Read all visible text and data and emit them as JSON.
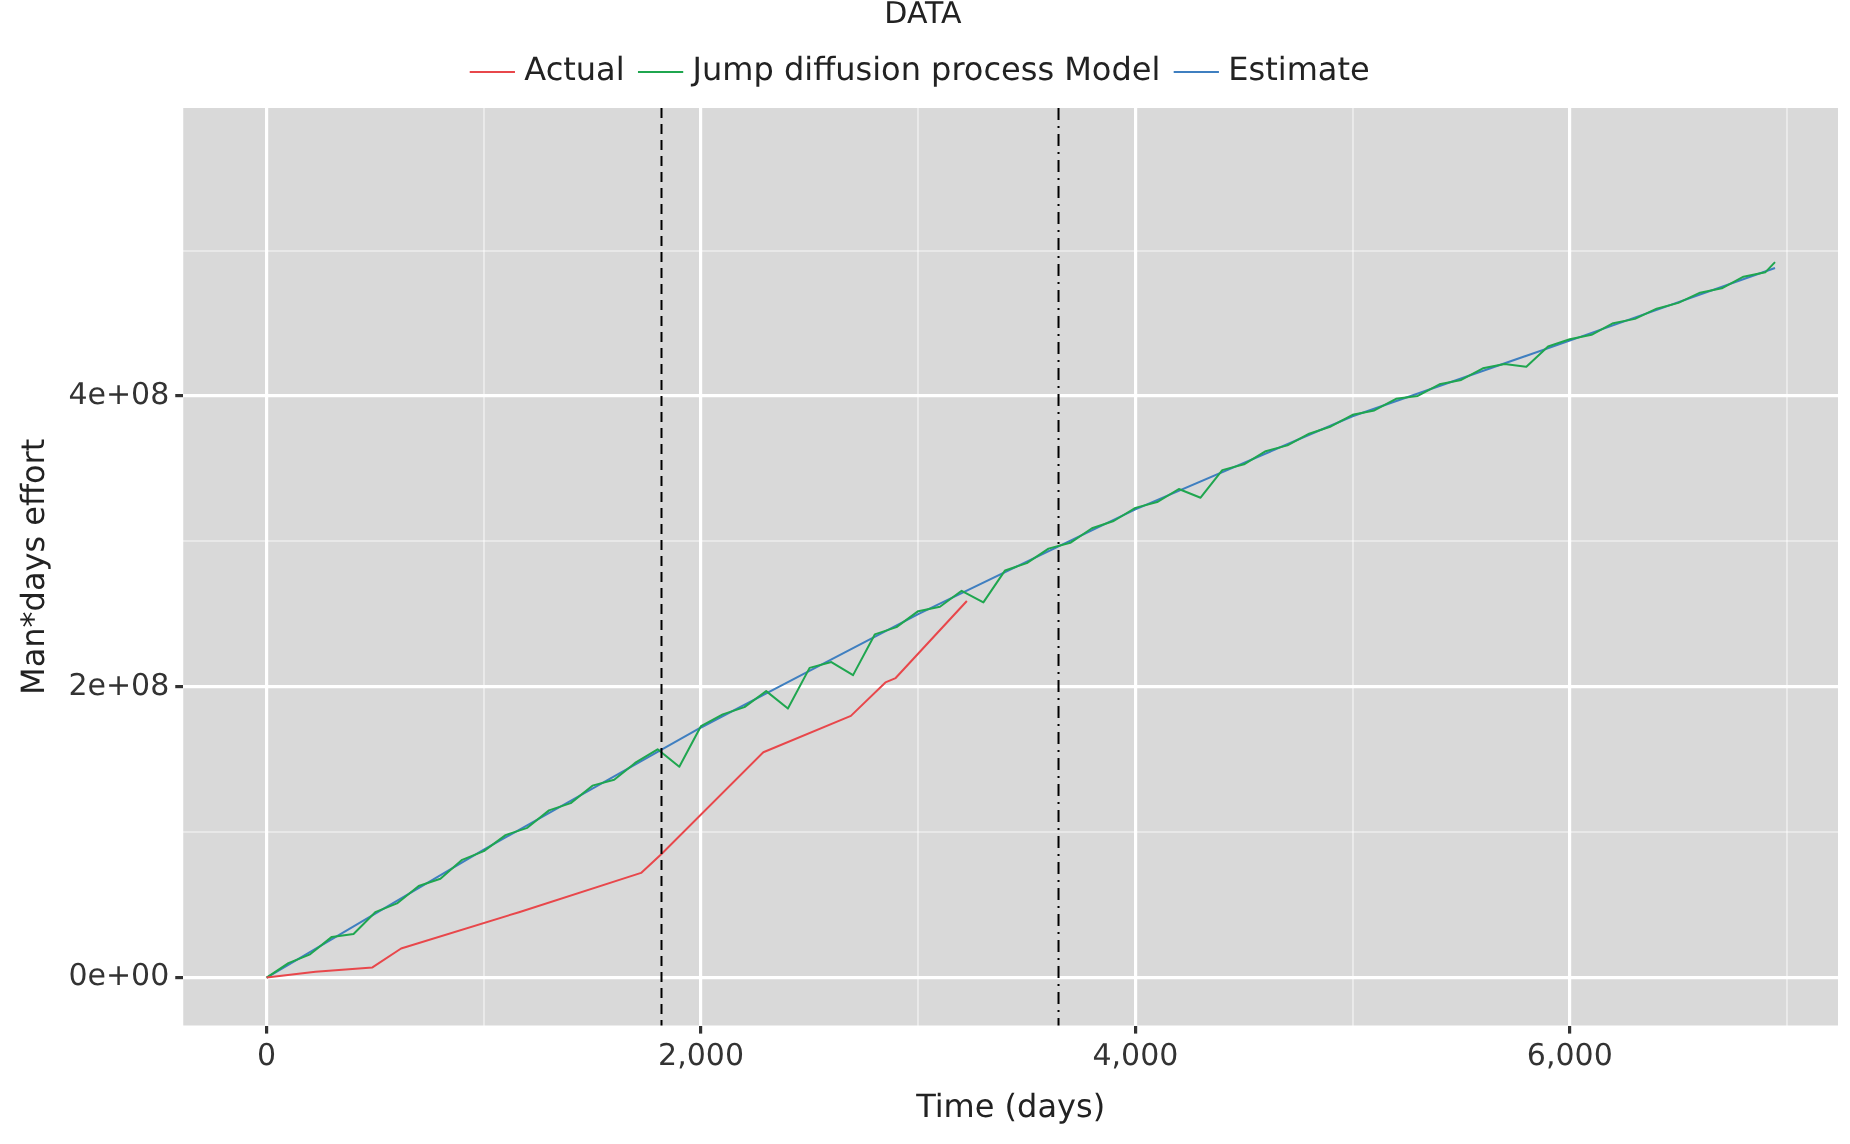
{
  "chart_data": {
    "type": "line",
    "xlabel": "Time (days)",
    "ylabel": "Man*days effort",
    "legend_title": "DATA",
    "legend": "top",
    "grid": true,
    "marker": "none",
    "line_style": "solid",
    "xlim": [
      -384,
      7235
    ],
    "ylim": [
      -33000000.0,
      598000000.0
    ],
    "xticks": [
      0,
      {
        "value": 1000,
        "label": null
      },
      {
        "value": 2000,
        "label": "2,000"
      },
      {
        "value": 3000,
        "label": null
      },
      {
        "value": 4000,
        "label": "4,000"
      },
      {
        "value": 5000,
        "label": null
      },
      {
        "value": 6000,
        "label": "6,000"
      },
      {
        "value": 7000,
        "label": null
      }
    ],
    "yticks": [
      {
        "value": 0,
        "label": "0e+00"
      },
      {
        "value": 100000000.0,
        "label": null
      },
      {
        "value": 200000000.0,
        "label": "2e+08"
      },
      {
        "value": 300000000.0,
        "label": null
      },
      {
        "value": 400000000.0,
        "label": "4e+08"
      },
      {
        "value": 500000000.0,
        "label": null
      }
    ],
    "ref_lines": [
      {
        "axis": "x",
        "value": 1818,
        "label": null,
        "color": "#000000",
        "line_style": "dashed"
      },
      {
        "axis": "x",
        "value": 3646,
        "label": null,
        "color": "#000000",
        "line_style": "dotted"
      }
    ],
    "series": [
      {
        "name": "Actual",
        "color": "#e8474b",
        "x": [
          0,
          225,
          487,
          619,
          1162,
          1724,
          1818,
          2287,
          2690,
          2849,
          2896,
          3224
        ],
        "values": [
          0,
          4000000.0,
          7000000.0,
          20000000.0,
          45000000.0,
          72000000.0,
          85000000.0,
          155000000.0,
          180000000.0,
          203000000.0,
          206000000.0,
          259000000.0
        ]
      },
      {
        "name": "Jump diffusion process Model",
        "color": "#1fa64f",
        "x": [
          0,
          100,
          200,
          300,
          400,
          500,
          600,
          700,
          800,
          900,
          1000,
          1100,
          1200,
          1300,
          1400,
          1500,
          1600,
          1700,
          1800,
          1900,
          2000,
          2100,
          2200,
          2300,
          2400,
          2500,
          2600,
          2700,
          2800,
          2900,
          3000,
          3100,
          3200,
          3300,
          3400,
          3500,
          3600,
          3700,
          3800,
          3900,
          4000,
          4100,
          4200,
          4300,
          4400,
          4500,
          4600,
          4700,
          4800,
          4900,
          5000,
          5100,
          5200,
          5300,
          5400,
          5500,
          5600,
          5700,
          5800,
          5900,
          6000,
          6100,
          6200,
          6300,
          6400,
          6500,
          6600,
          6700,
          6800,
          6900,
          6945
        ],
        "values": [
          0,
          10000000.0,
          16000000.0,
          28000000.0,
          30000000.0,
          45000000.0,
          51000000.0,
          63000000.0,
          68000000.0,
          81000000.0,
          87000000.0,
          98000000.0,
          103000000.0,
          115000000.0,
          120000000.0,
          132000000.0,
          136000000.0,
          148000000.0,
          157000000.0,
          145000000.0,
          173000000.0,
          181000000.0,
          186000000.0,
          197000000.0,
          185000000.0,
          213000000.0,
          217000000.0,
          208000000.0,
          236000000.0,
          241000000.0,
          252000000.0,
          255000000.0,
          266000000.0,
          258000000.0,
          280000000.0,
          285000000.0,
          295000000.0,
          299000000.0,
          309000000.0,
          314000000.0,
          323000000.0,
          327000000.0,
          336000000.0,
          330000000.0,
          349000000.0,
          353000000.0,
          362000000.0,
          366000000.0,
          374000000.0,
          379000000.0,
          387000000.0,
          390000000.0,
          398000000.0,
          400000000.0,
          408000000.0,
          411000000.0,
          419000000.0,
          422000000.0,
          420000000.0,
          434000000.0,
          439000000.0,
          442000000.0,
          450000000.0,
          453000000.0,
          460000000.0,
          464000000.0,
          471000000.0,
          474000000.0,
          482000000.0,
          485000000.0,
          492000000.0
        ]
      },
      {
        "name": "Estimate",
        "color": "#3f7fc0",
        "x": [
          0,
          1000,
          2000,
          3000,
          4000,
          5000,
          6000,
          6945
        ],
        "values": [
          0,
          88000000.0,
          172000000.0,
          250000000.0,
          322000000.0,
          386000000.0,
          438000000.0,
          488000000.0
        ]
      }
    ]
  }
}
